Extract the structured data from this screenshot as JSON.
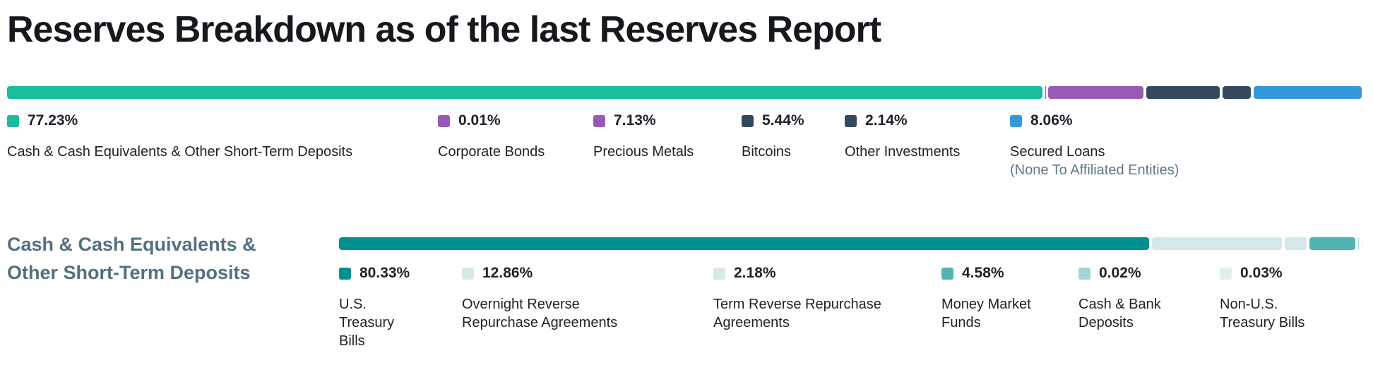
{
  "title": "Reserves Breakdown as of the last Reserves Report",
  "chart_data": [
    {
      "type": "bar",
      "orientation": "horizontal-stacked",
      "unit": "%",
      "total": 100,
      "series": [
        {
          "label": "Cash & Cash Equivalents & Other Short-Term Deposits",
          "value": 77.23,
          "pct_label": "77.23%",
          "color": "#1abc9c"
        },
        {
          "label": "Corporate Bonds",
          "value": 0.01,
          "pct_label": "0.01%",
          "color": "#9b59b6"
        },
        {
          "label": "Precious Metals",
          "value": 7.13,
          "pct_label": "7.13%",
          "color": "#9b59b6"
        },
        {
          "label": "Bitcoins",
          "value": 5.44,
          "pct_label": "5.44%",
          "color": "#34495e"
        },
        {
          "label": "Other Investments",
          "value": 2.14,
          "pct_label": "2.14%",
          "color": "#34495e"
        },
        {
          "label": "Secured Loans",
          "note": "(None To Affiliated Entities)",
          "value": 8.06,
          "pct_label": "8.06%",
          "color": "#3498db"
        }
      ]
    },
    {
      "type": "bar",
      "orientation": "horizontal-stacked",
      "unit": "%",
      "total": 100,
      "heading": "Cash & Cash Equivalents & Other Short-Term Deposits",
      "series": [
        {
          "label": "U.S. Treasury Bills",
          "value": 80.33,
          "pct_label": "80.33%",
          "color": "#009090"
        },
        {
          "label": "Overnight Reverse Repurchase Agreements",
          "value": 12.86,
          "pct_label": "12.86%",
          "color": "#d6e8e8"
        },
        {
          "label": "Term Reverse Repurchase Agreements",
          "value": 2.18,
          "pct_label": "2.18%",
          "color": "#d6e8e8"
        },
        {
          "label": "Money Market Funds",
          "value": 4.58,
          "pct_label": "4.58%",
          "color": "#52b3b3"
        },
        {
          "label": "Cash & Bank Deposits",
          "value": 0.02,
          "pct_label": "0.02%",
          "color": "#a3d5d6"
        },
        {
          "label": "Non-U.S. Treasury Bills",
          "value": 0.03,
          "pct_label": "0.03%",
          "color": "#e0efee"
        }
      ]
    }
  ]
}
